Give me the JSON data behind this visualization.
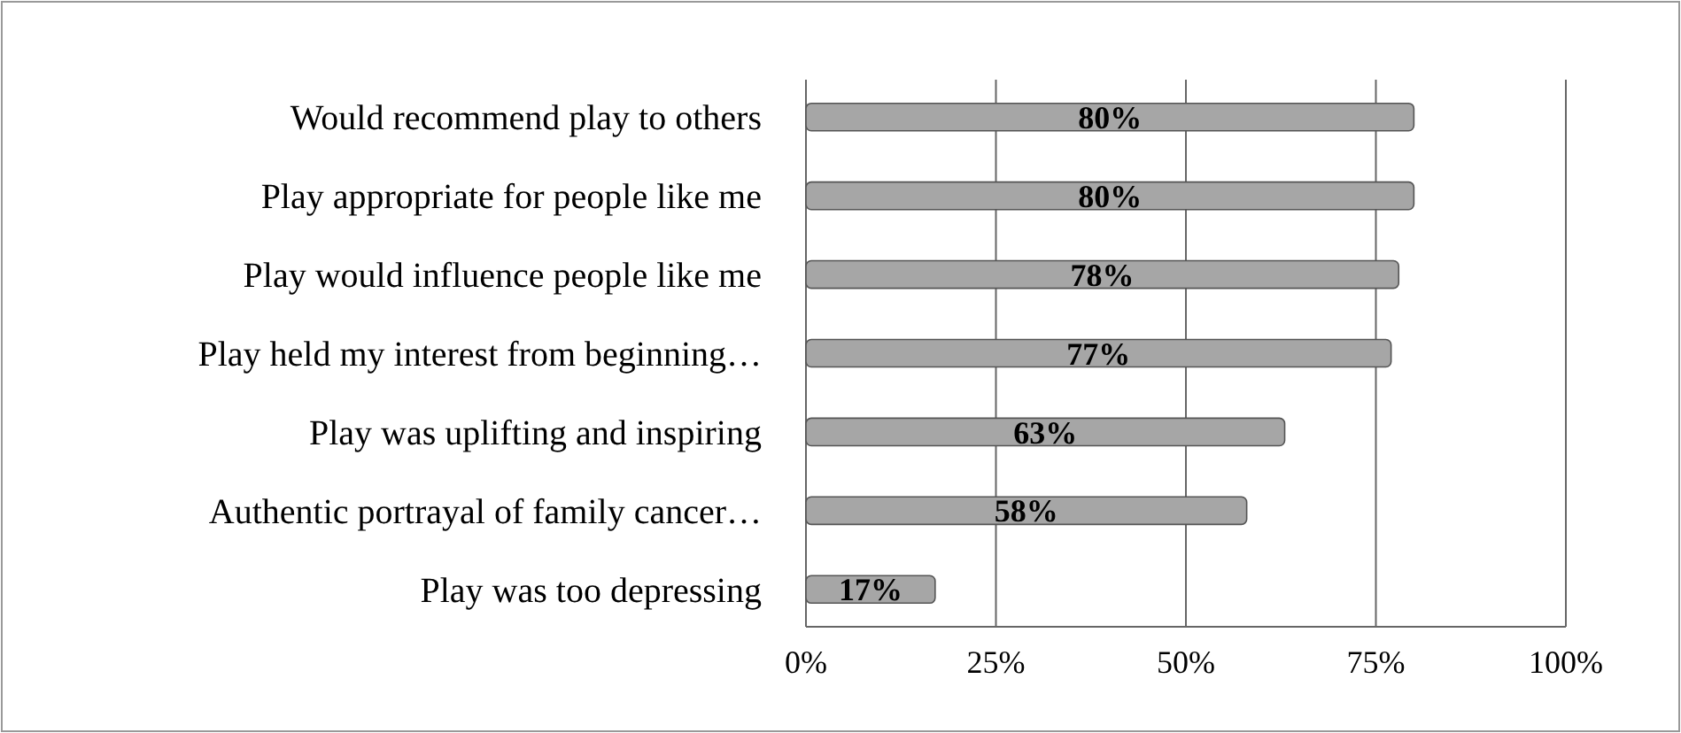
{
  "chart_data": {
    "type": "bar",
    "orientation": "horizontal",
    "categories": [
      "Would recommend play to others",
      "Play appropriate for people like me",
      "Play would influence people like me",
      "Play held my interest from beginning…",
      "Play was uplifting and inspiring",
      "Authentic portrayal of family cancer…",
      "Play was too depressing"
    ],
    "values": [
      80,
      80,
      78,
      77,
      63,
      58,
      17
    ],
    "value_labels": [
      "80%",
      "80%",
      "78%",
      "77%",
      "63%",
      "58%",
      "17%"
    ],
    "color": "#a6a6a6",
    "xlim": [
      0,
      100
    ],
    "xticks": [
      {
        "value": 0,
        "label": "0%"
      },
      {
        "value": 25,
        "label": "25%"
      },
      {
        "value": 50,
        "label": "50%"
      },
      {
        "value": 75,
        "label": "75%"
      },
      {
        "value": 100,
        "label": "100%"
      }
    ],
    "grid": "x"
  }
}
